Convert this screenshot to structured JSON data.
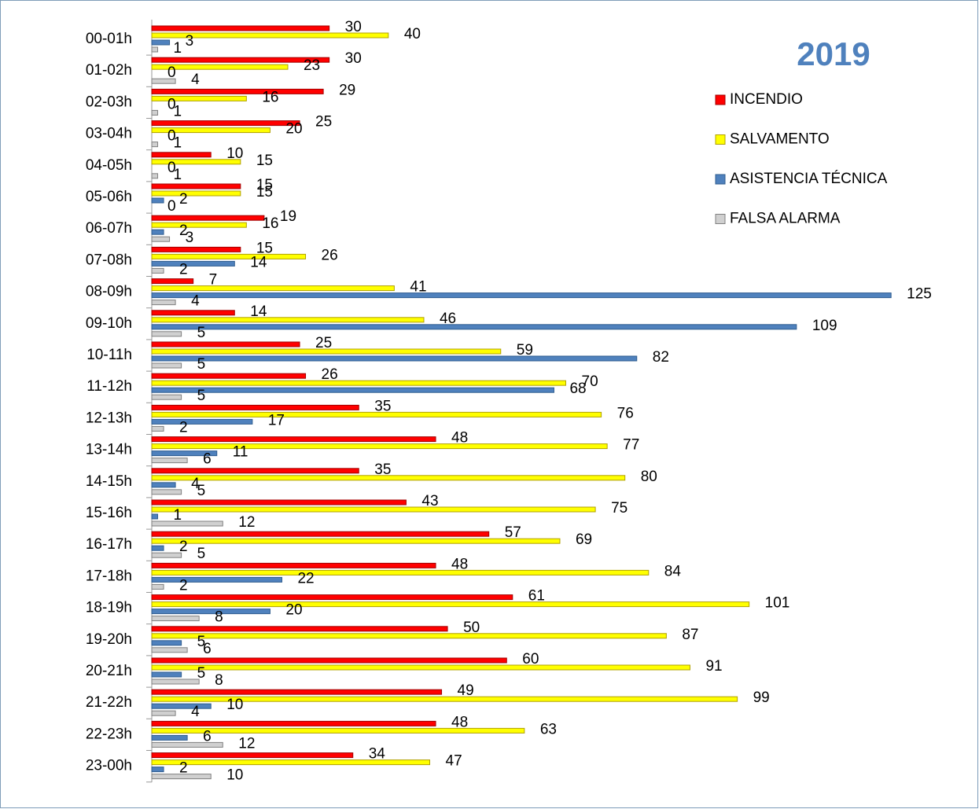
{
  "chart_data": {
    "type": "bar",
    "orientation": "horizontal",
    "title": "2019",
    "categories": [
      "00-01h",
      "01-02h",
      "02-03h",
      "03-04h",
      "04-05h",
      "05-06h",
      "06-07h",
      "07-08h",
      "08-09h",
      "09-10h",
      "10-11h",
      "11-12h",
      "12-13h",
      "13-14h",
      "14-15h",
      "15-16h",
      "16-17h",
      "17-18h",
      "18-19h",
      "19-20h",
      "20-21h",
      "21-22h",
      "22-23h",
      "23-00h"
    ],
    "series": [
      {
        "name": "INCENDIO",
        "color": "#ff0000",
        "values": [
          30,
          30,
          29,
          25,
          10,
          15,
          19,
          15,
          7,
          14,
          25,
          26,
          35,
          48,
          35,
          43,
          57,
          48,
          61,
          50,
          60,
          49,
          48,
          34
        ]
      },
      {
        "name": "SALVAMENTO",
        "color": "#ffff00",
        "values": [
          40,
          23,
          16,
          20,
          15,
          15,
          16,
          26,
          41,
          46,
          59,
          70,
          76,
          77,
          80,
          75,
          69,
          84,
          101,
          87,
          91,
          99,
          63,
          47
        ]
      },
      {
        "name": "ASISTENCIA TÉCNICA",
        "color": "#4f81bd",
        "values": [
          3,
          0,
          0,
          0,
          0,
          2,
          2,
          14,
          125,
          109,
          82,
          68,
          17,
          11,
          4,
          1,
          2,
          22,
          20,
          5,
          5,
          10,
          6,
          2
        ]
      },
      {
        "name": "FALSA ALARMA",
        "color": "#d0d0d0",
        "values": [
          1,
          4,
          1,
          1,
          1,
          0,
          3,
          2,
          4,
          5,
          5,
          5,
          2,
          6,
          5,
          12,
          5,
          2,
          8,
          6,
          8,
          4,
          12,
          10
        ]
      }
    ],
    "xlim": [
      0,
      140
    ]
  }
}
